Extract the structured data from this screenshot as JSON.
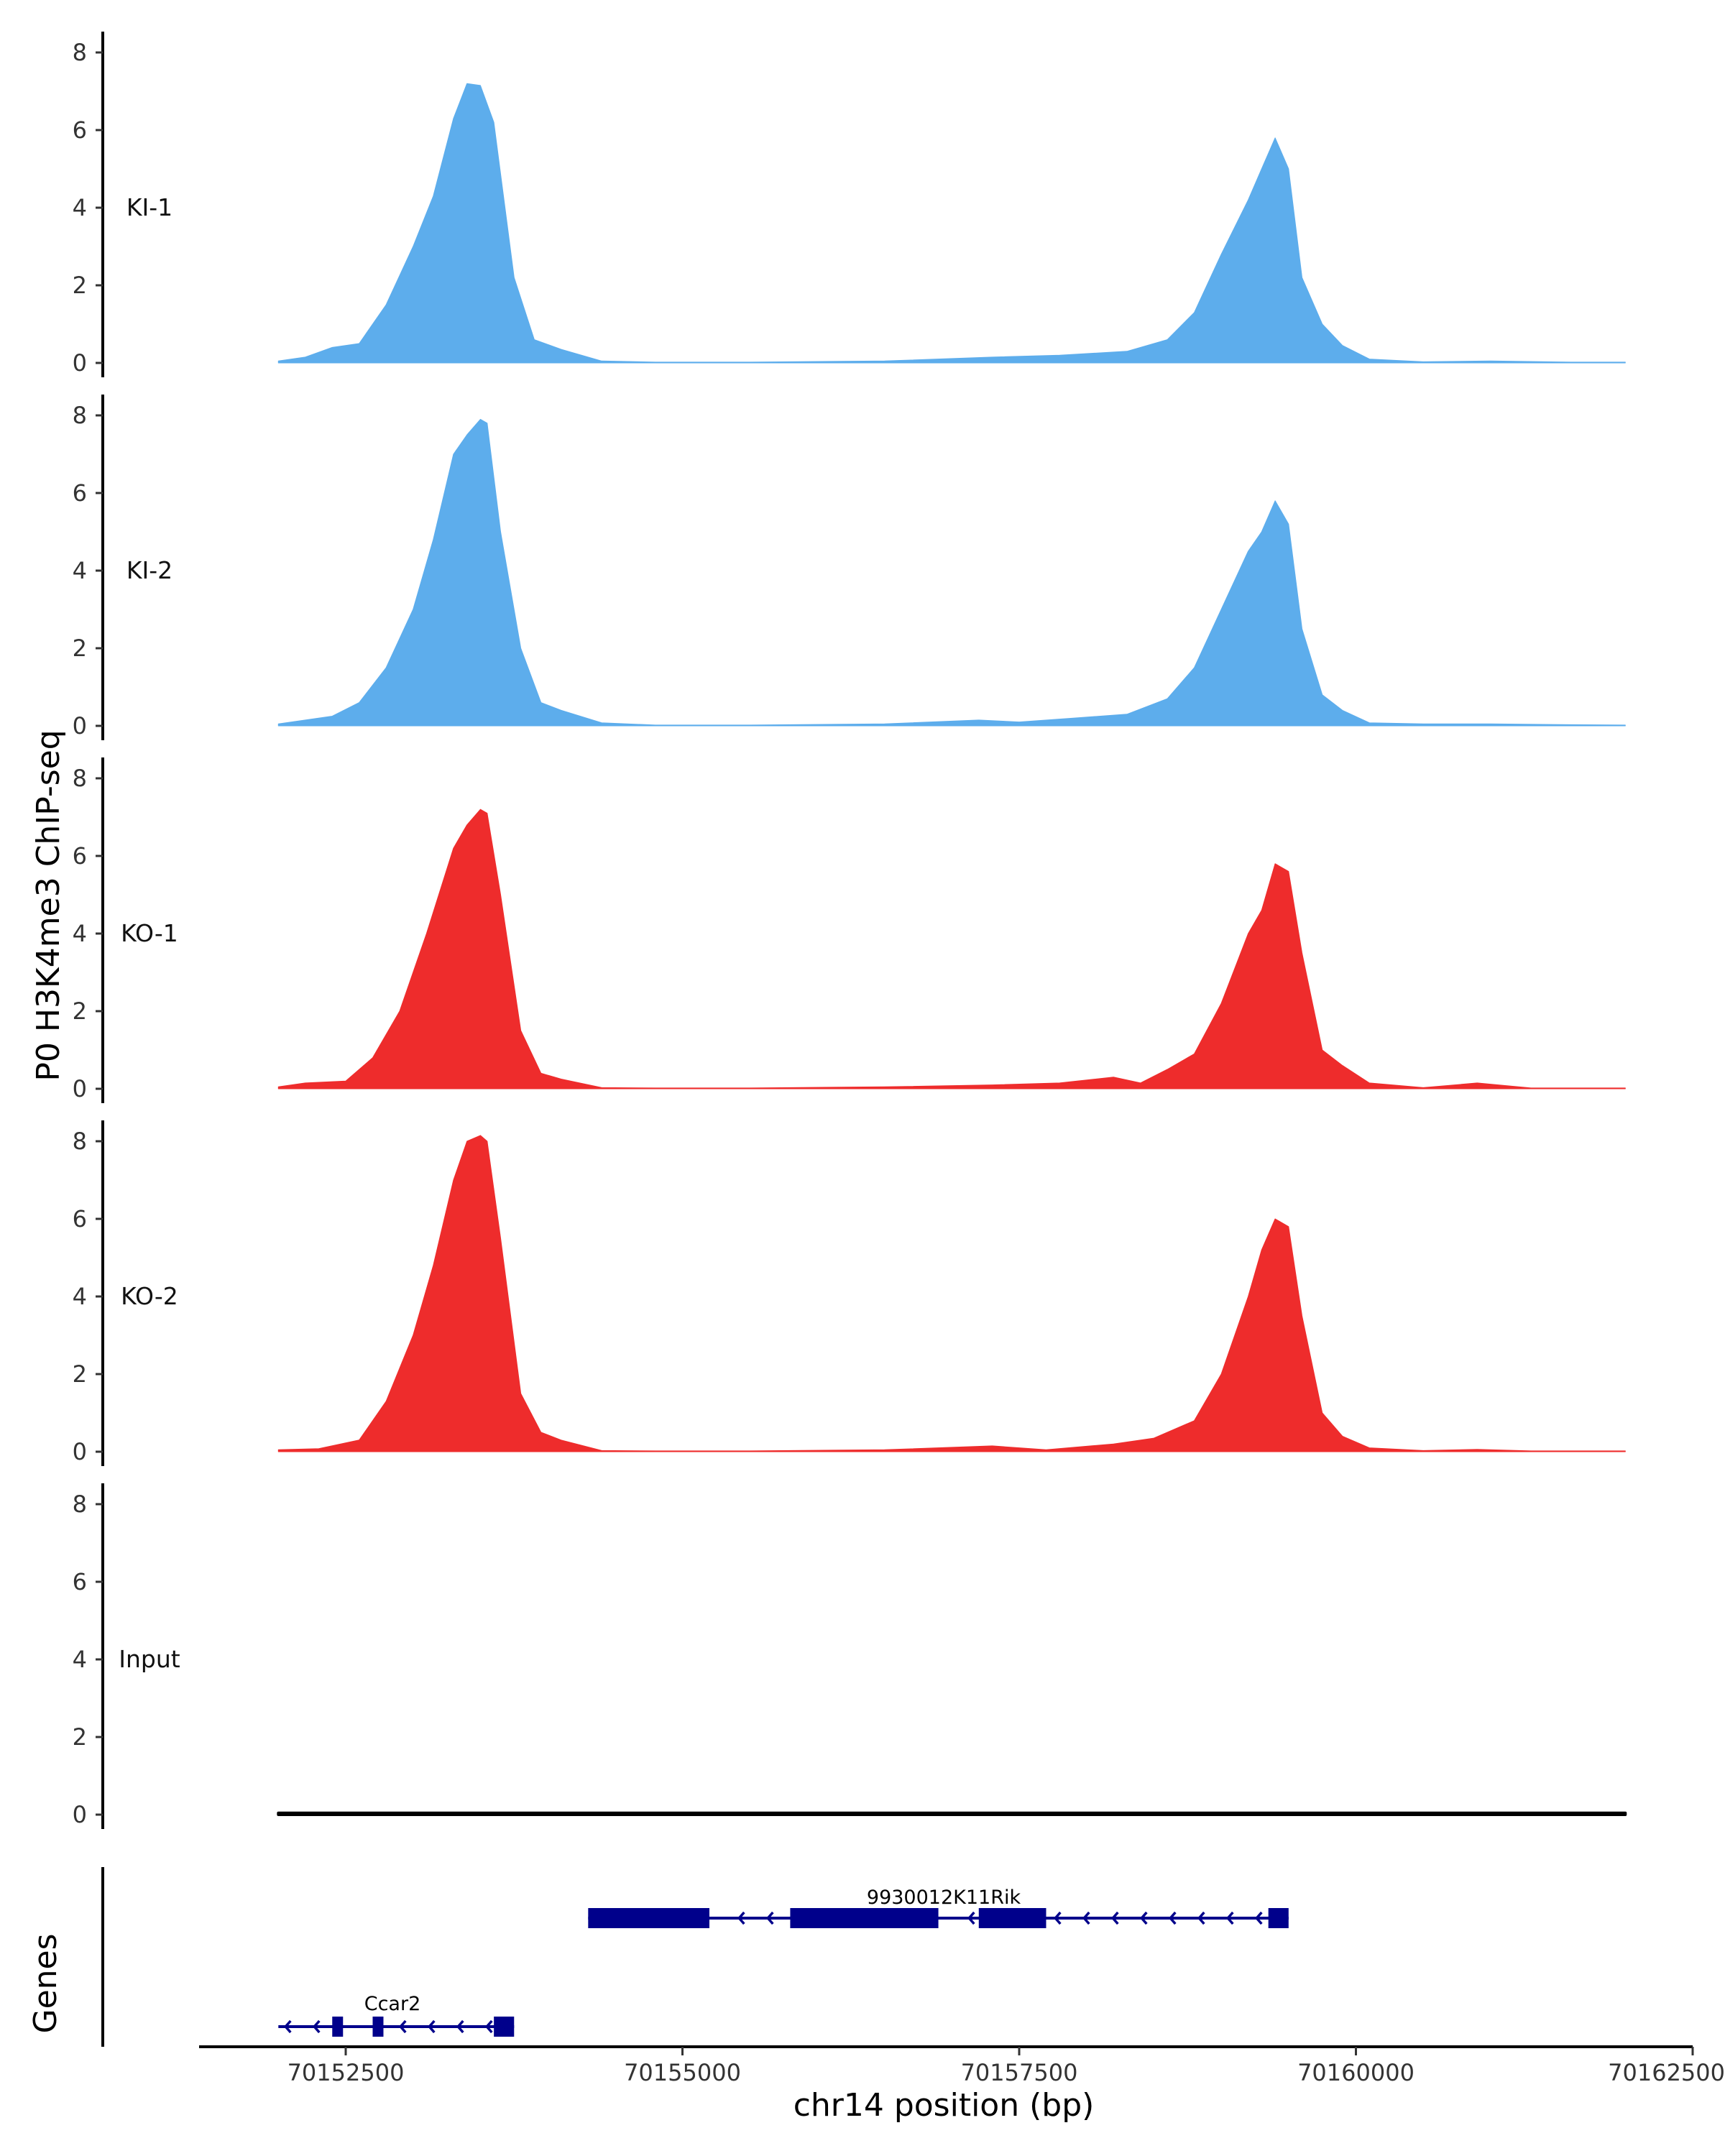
{
  "chart_data": {
    "type": "area",
    "title": "",
    "ylabel": "P0 H3K4me3 ChIP-seq",
    "xlabel": "chr14 position (bp)",
    "ylim": [
      0,
      8.5
    ],
    "yticks": [
      0,
      2,
      4,
      6,
      8
    ],
    "xlim": [
      70151500,
      70162500
    ],
    "xticks": [
      70152500,
      70155000,
      70157500,
      70160000,
      70162500
    ],
    "xtick_labels": [
      "70152500",
      "70155000",
      "70157500",
      "70160000",
      "70162500"
    ],
    "colors": {
      "KI": "#5DADEC",
      "KO": "#EE2C2C",
      "Input": "#000000",
      "gene": "#00008B"
    },
    "series": [
      {
        "name": "KI-1",
        "color": "#5DADEC",
        "x": [
          70152000,
          70152200,
          70152400,
          70152600,
          70152800,
          70153000,
          70153150,
          70153300,
          70153400,
          70153500,
          70153600,
          70153750,
          70153900,
          70154100,
          70154400,
          70154800,
          70155500,
          70156500,
          70157300,
          70157800,
          70158300,
          70158600,
          70158800,
          70159000,
          70159200,
          70159300,
          70159400,
          70159500,
          70159600,
          70159750,
          70159900,
          70160100,
          70160500,
          70161000,
          70161600,
          70162000
        ],
        "values": [
          0.05,
          0.15,
          0.4,
          0.5,
          1.5,
          3.0,
          4.3,
          6.3,
          7.2,
          7.15,
          6.2,
          2.2,
          0.6,
          0.35,
          0.05,
          0.02,
          0.02,
          0.05,
          0.15,
          0.2,
          0.3,
          0.6,
          1.3,
          2.8,
          4.2,
          5.0,
          5.8,
          5.0,
          2.2,
          1.0,
          0.45,
          0.1,
          0.03,
          0.05,
          0.02,
          0.02
        ]
      },
      {
        "name": "KI-2",
        "color": "#5DADEC",
        "x": [
          70152000,
          70152200,
          70152400,
          70152600,
          70152800,
          70153000,
          70153150,
          70153300,
          70153400,
          70153500,
          70153550,
          70153650,
          70153800,
          70153950,
          70154100,
          70154400,
          70154800,
          70155500,
          70156500,
          70157200,
          70157500,
          70157900,
          70158300,
          70158600,
          70158800,
          70159000,
          70159200,
          70159300,
          70159400,
          70159500,
          70159600,
          70159750,
          70159900,
          70160100,
          70160500,
          70161000,
          70161600,
          70162000
        ],
        "values": [
          0.05,
          0.15,
          0.25,
          0.6,
          1.5,
          3.0,
          4.8,
          7.0,
          7.5,
          7.9,
          7.8,
          5.0,
          2.0,
          0.6,
          0.4,
          0.08,
          0.02,
          0.02,
          0.05,
          0.15,
          0.1,
          0.2,
          0.3,
          0.7,
          1.5,
          3.0,
          4.5,
          5.0,
          5.8,
          5.2,
          2.5,
          0.8,
          0.4,
          0.08,
          0.05,
          0.05,
          0.03,
          0.02
        ]
      },
      {
        "name": "KO-1",
        "color": "#EE2C2C",
        "x": [
          70152000,
          70152200,
          70152500,
          70152700,
          70152900,
          70153100,
          70153300,
          70153400,
          70153500,
          70153550,
          70153650,
          70153800,
          70153950,
          70154100,
          70154400,
          70154800,
          70155500,
          70156500,
          70157300,
          70157800,
          70158200,
          70158400,
          70158600,
          70158800,
          70159000,
          70159200,
          70159300,
          70159400,
          70159500,
          70159600,
          70159750,
          70159900,
          70160100,
          70160500,
          70160900,
          70161300,
          70162000
        ],
        "values": [
          0.05,
          0.15,
          0.2,
          0.8,
          2.0,
          4.0,
          6.2,
          6.8,
          7.2,
          7.1,
          5.0,
          1.5,
          0.4,
          0.25,
          0.03,
          0.02,
          0.02,
          0.05,
          0.1,
          0.15,
          0.3,
          0.15,
          0.5,
          0.9,
          2.2,
          4.0,
          4.6,
          5.8,
          5.6,
          3.5,
          1.0,
          0.6,
          0.15,
          0.03,
          0.15,
          0.02,
          0.02
        ]
      },
      {
        "name": "KO-2",
        "color": "#EE2C2C",
        "x": [
          70152000,
          70152300,
          70152600,
          70152800,
          70153000,
          70153150,
          70153300,
          70153400,
          70153500,
          70153550,
          70153650,
          70153800,
          70153950,
          70154100,
          70154400,
          70154800,
          70155500,
          70156500,
          70157300,
          70157700,
          70158200,
          70158500,
          70158800,
          70159000,
          70159200,
          70159300,
          70159400,
          70159500,
          70159600,
          70159750,
          70159900,
          70160100,
          70160500,
          70160900,
          70161300,
          70162000
        ],
        "values": [
          0.05,
          0.08,
          0.3,
          1.3,
          3.0,
          4.8,
          7.0,
          8.0,
          8.15,
          8.0,
          5.5,
          1.5,
          0.5,
          0.3,
          0.03,
          0.02,
          0.02,
          0.05,
          0.15,
          0.05,
          0.2,
          0.35,
          0.8,
          2.0,
          4.0,
          5.2,
          6.0,
          5.8,
          3.5,
          1.0,
          0.4,
          0.1,
          0.03,
          0.06,
          0.02,
          0.02
        ]
      },
      {
        "name": "Input",
        "color": "#000000",
        "x": [
          70152000,
          70162000
        ],
        "values": [
          0.04,
          0.04
        ]
      }
    ],
    "genes_track_label": "Genes",
    "genes": [
      {
        "name": "9930012K11Rik",
        "strand": "-",
        "start": 70154300,
        "end": 70159500,
        "exons": [
          [
            70154300,
            70155200
          ],
          [
            70155800,
            70156900
          ],
          [
            70157200,
            70157700
          ],
          [
            70159350,
            70159500
          ]
        ]
      },
      {
        "name": "Ccar2",
        "strand": "-",
        "start": 70152000,
        "end": 70153750,
        "exons": [
          [
            70152400,
            70152480
          ],
          [
            70152700,
            70152780
          ],
          [
            70153600,
            70153750
          ]
        ]
      }
    ]
  }
}
